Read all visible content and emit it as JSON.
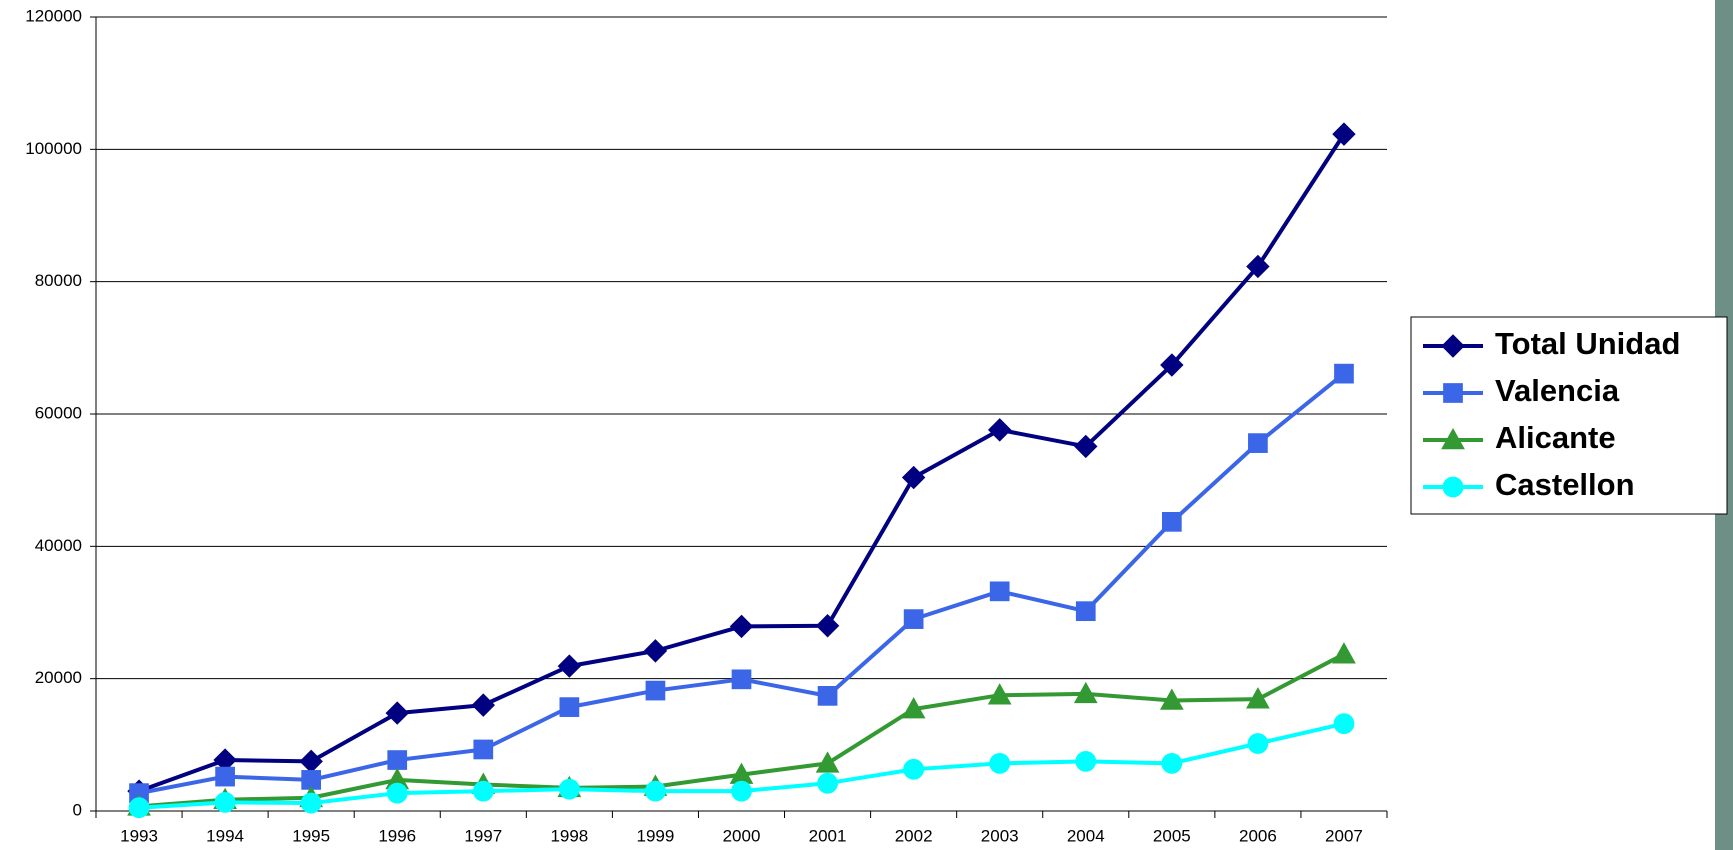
{
  "chart_data": {
    "type": "line",
    "categories": [
      "1993",
      "1994",
      "1995",
      "1996",
      "1997",
      "1998",
      "1999",
      "2000",
      "2001",
      "2002",
      "2003",
      "2004",
      "2005",
      "2006",
      "2007"
    ],
    "series": [
      {
        "name": "Total Unidad",
        "color": "#000080",
        "marker": "diamond",
        "values": [
          3000,
          7700,
          7500,
          14800,
          16000,
          21900,
          24200,
          27900,
          28000,
          50400,
          57600,
          55100,
          67400,
          82300,
          102300
        ]
      },
      {
        "name": "Valencia",
        "color": "#3b66e8",
        "marker": "square",
        "values": [
          2700,
          5200,
          4700,
          7700,
          9300,
          15700,
          18200,
          19900,
          17400,
          29000,
          33200,
          30200,
          43700,
          55600,
          66100
        ]
      },
      {
        "name": "Alicante",
        "color": "#339933",
        "marker": "triangle",
        "values": [
          700,
          1700,
          2000,
          4700,
          4000,
          3500,
          3700,
          5500,
          7200,
          15400,
          17500,
          17700,
          16700,
          16900,
          23700
        ]
      },
      {
        "name": "Castellon",
        "color": "#00ffff",
        "marker": "circle",
        "values": [
          500,
          1300,
          1200,
          2700,
          3000,
          3300,
          3000,
          3000,
          4200,
          6300,
          7200,
          7500,
          7200,
          10200,
          13200
        ]
      }
    ],
    "ylim": [
      0,
      120000
    ],
    "yticks": [
      0,
      20000,
      40000,
      60000,
      80000,
      100000,
      120000
    ],
    "grid": true,
    "legend": "right"
  }
}
